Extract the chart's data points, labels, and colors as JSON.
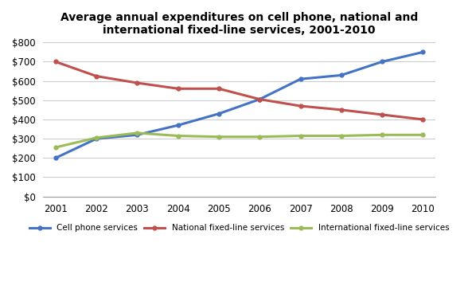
{
  "title": "Average annual expenditures on cell phone, national and\ninternational fixed-line services, 2001-2010",
  "years": [
    2001,
    2002,
    2003,
    2004,
    2005,
    2006,
    2007,
    2008,
    2009,
    2010
  ],
  "cell_phone": [
    200,
    300,
    320,
    370,
    430,
    505,
    610,
    630,
    700,
    750
  ],
  "national_fixed": [
    700,
    625,
    590,
    560,
    560,
    505,
    470,
    450,
    425,
    400
  ],
  "intl_fixed": [
    255,
    305,
    330,
    315,
    310,
    310,
    315,
    315,
    320,
    320
  ],
  "cell_color": "#4472C4",
  "national_color": "#C0504D",
  "intl_color": "#9BBB59",
  "ylim": [
    0,
    800
  ],
  "yticks": [
    0,
    100,
    200,
    300,
    400,
    500,
    600,
    700,
    800
  ],
  "background_color": "#FFFFFF",
  "legend_labels": [
    "Cell phone services",
    "National fixed-line services",
    "International fixed-line services"
  ],
  "line_width": 2.2,
  "title_fontsize": 10,
  "tick_fontsize": 8.5
}
